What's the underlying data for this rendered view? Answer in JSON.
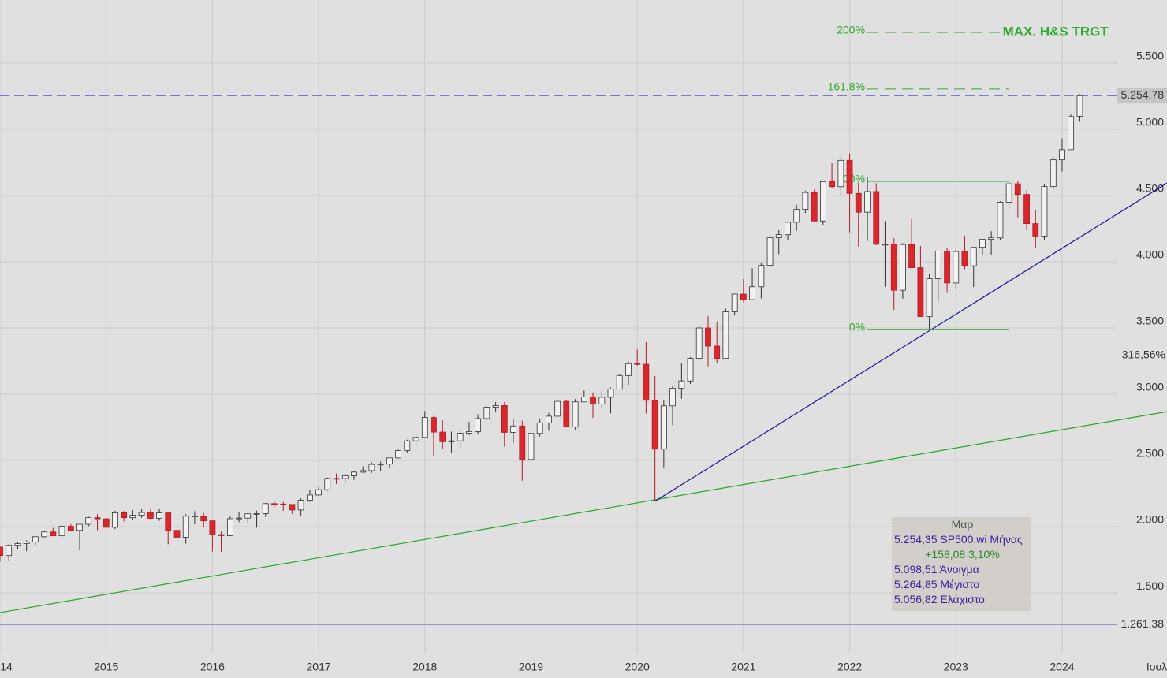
{
  "chart_data": {
    "type": "candlestick",
    "x": [
      2014,
      2014.083,
      2014.167,
      2014.25,
      2014.333,
      2014.417,
      2014.5,
      2014.583,
      2014.667,
      2014.75,
      2014.833,
      2014.917,
      2015,
      2015.083,
      2015.167,
      2015.25,
      2015.333,
      2015.417,
      2015.5,
      2015.583,
      2015.667,
      2015.75,
      2015.833,
      2015.917,
      2016,
      2016.083,
      2016.167,
      2016.25,
      2016.333,
      2016.417,
      2016.5,
      2016.583,
      2016.667,
      2016.75,
      2016.833,
      2016.917,
      2017,
      2017.083,
      2017.167,
      2017.25,
      2017.333,
      2017.417,
      2017.5,
      2017.583,
      2017.667,
      2017.75,
      2017.833,
      2017.917,
      2018,
      2018.083,
      2018.167,
      2018.25,
      2018.333,
      2018.417,
      2018.5,
      2018.583,
      2018.667,
      2018.75,
      2018.833,
      2018.917,
      2019,
      2019.083,
      2019.167,
      2019.25,
      2019.333,
      2019.417,
      2019.5,
      2019.583,
      2019.667,
      2019.75,
      2019.833,
      2019.917,
      2020,
      2020.083,
      2020.167,
      2020.25,
      2020.333,
      2020.417,
      2020.5,
      2020.583,
      2020.667,
      2020.75,
      2020.833,
      2020.917,
      2021,
      2021.083,
      2021.167,
      2021.25,
      2021.333,
      2021.417,
      2021.5,
      2021.583,
      2021.667,
      2021.75,
      2021.833,
      2021.917,
      2022,
      2022.083,
      2022.167,
      2022.25,
      2022.333,
      2022.417,
      2022.5,
      2022.583,
      2022.667,
      2022.75,
      2022.833,
      2022.917,
      2023,
      2023.083,
      2023.167,
      2023.25,
      2023.333,
      2023.417,
      2023.5,
      2023.583,
      2023.667,
      2023.75,
      2023.833,
      2023.917,
      2024,
      2024.083,
      2024.167
    ],
    "open": [
      1846,
      1782,
      1859,
      1872,
      1884,
      1924,
      1960,
      1931,
      2003,
      1972,
      2018,
      2068,
      2059,
      1995,
      2105,
      2068,
      2086,
      2107,
      2063,
      2104,
      1972,
      1920,
      2079,
      2080,
      2044,
      1940,
      1932,
      2060,
      2065,
      2097,
      2099,
      2174,
      2171,
      2168,
      2126,
      2199,
      2239,
      2279,
      2364,
      2363,
      2384,
      2412,
      2423,
      2470,
      2472,
      2519,
      2575,
      2648,
      2674,
      2824,
      2714,
      2641,
      2648,
      2705,
      2718,
      2816,
      2902,
      2914,
      2712,
      2760,
      2507,
      2704,
      2784,
      2834,
      2946,
      2752,
      2942,
      2980,
      2926,
      2977,
      3038,
      3141,
      3231,
      3226,
      2954,
      2585,
      2912,
      3044,
      3100,
      3271,
      3500,
      3363,
      3270,
      3622,
      3756,
      3714,
      3811,
      3973,
      4181,
      4204,
      4298,
      4395,
      4523,
      4308,
      4605,
      4567,
      4766,
      4516,
      4374,
      4530,
      4132,
      4132,
      3785,
      4130,
      3955,
      3586,
      3872,
      4080,
      3840,
      4077,
      3970,
      4109,
      4169,
      4180,
      4450,
      4589,
      4508,
      4288,
      4194,
      4568,
      4770,
      4846,
      5099
    ],
    "high": [
      1850,
      1867,
      1884,
      1897,
      1925,
      1968,
      1991,
      2005,
      2019,
      2019,
      2075,
      2094,
      2072,
      2120,
      2118,
      2126,
      2135,
      2130,
      2133,
      2113,
      2021,
      2094,
      2117,
      2104,
      2044,
      1963,
      2076,
      2112,
      2104,
      2121,
      2178,
      2194,
      2188,
      2170,
      2214,
      2278,
      2301,
      2371,
      2401,
      2399,
      2419,
      2454,
      2484,
      2491,
      2520,
      2582,
      2657,
      2695,
      2873,
      2836,
      2802,
      2718,
      2742,
      2791,
      2848,
      2917,
      2941,
      2940,
      2815,
      2800,
      2708,
      2813,
      2860,
      2949,
      2954,
      2964,
      3028,
      3014,
      3022,
      3050,
      3154,
      3248,
      3338,
      3394,
      3137,
      2954,
      3068,
      3233,
      3280,
      3515,
      3588,
      3550,
      3646,
      3760,
      3870,
      3951,
      3995,
      4219,
      4238,
      4302,
      4430,
      4537,
      4546,
      4608,
      4744,
      4808,
      4819,
      4595,
      4637,
      4593,
      4307,
      4178,
      4140,
      4325,
      4119,
      3906,
      4080,
      4101,
      4095,
      4195,
      4110,
      4170,
      4231,
      4458,
      4607,
      4607,
      4541,
      4393,
      4587,
      4793,
      4932,
      5111,
      5265
    ],
    "low": [
      1738,
      1738,
      1834,
      1815,
      1860,
      1915,
      1930,
      1905,
      1964,
      1821,
      2002,
      1973,
      1988,
      1981,
      2040,
      2048,
      2067,
      2057,
      2044,
      1867,
      1872,
      1872,
      2019,
      1993,
      1812,
      1810,
      1932,
      2034,
      2025,
      1992,
      2074,
      2148,
      2120,
      2097,
      2084,
      2187,
      2234,
      2271,
      2322,
      2329,
      2353,
      2406,
      2407,
      2417,
      2446,
      2515,
      2557,
      2605,
      2670,
      2533,
      2585,
      2553,
      2595,
      2692,
      2698,
      2803,
      2864,
      2604,
      2631,
      2347,
      2444,
      2681,
      2723,
      2830,
      2750,
      2729,
      2940,
      2822,
      2891,
      2856,
      3036,
      3070,
      3215,
      2855,
      2192,
      2448,
      2766,
      2966,
      3077,
      3271,
      3210,
      3234,
      3263,
      3594,
      3694,
      3710,
      3723,
      3956,
      4057,
      4165,
      4234,
      4368,
      4305,
      4279,
      4560,
      4495,
      4222,
      4115,
      4157,
      4125,
      3811,
      3637,
      3721,
      3955,
      3585,
      3492,
      3698,
      3764,
      3794,
      3943,
      3809,
      4049,
      4048,
      4166,
      4385,
      4335,
      4238,
      4104,
      4167,
      4546,
      4682,
      4845,
      5057
    ],
    "close": [
      1782,
      1859,
      1872,
      1884,
      1924,
      1960,
      1931,
      2003,
      1972,
      2018,
      2068,
      2059,
      1995,
      2105,
      2068,
      2086,
      2107,
      2063,
      2104,
      1972,
      1920,
      2079,
      2080,
      2044,
      1940,
      1932,
      2060,
      2065,
      2097,
      2099,
      2174,
      2171,
      2168,
      2126,
      2199,
      2239,
      2279,
      2364,
      2363,
      2384,
      2412,
      2423,
      2470,
      2472,
      2519,
      2575,
      2648,
      2674,
      2824,
      2714,
      2641,
      2648,
      2705,
      2718,
      2816,
      2902,
      2914,
      2712,
      2760,
      2507,
      2704,
      2784,
      2834,
      2946,
      2752,
      2942,
      2980,
      2926,
      2977,
      3038,
      3141,
      3231,
      3226,
      2954,
      2585,
      2912,
      3044,
      3100,
      3271,
      3500,
      3363,
      3270,
      3622,
      3756,
      3714,
      3811,
      3973,
      4181,
      4204,
      4298,
      4395,
      4523,
      4308,
      4605,
      4567,
      4766,
      4516,
      4374,
      4530,
      4132,
      4132,
      3785,
      4130,
      3955,
      3586,
      3872,
      4080,
      3840,
      4077,
      3970,
      4109,
      4169,
      4180,
      4450,
      4589,
      4508,
      4288,
      4194,
      4568,
      4770,
      4846,
      5096,
      5254
    ],
    "up_color": "#f2f2f2",
    "down_color": "#d9272e",
    "xlim": [
      2014,
      2024.52
    ],
    "ylim": [
      1048,
      5976
    ],
    "xticks": [
      {
        "value": 2014,
        "label": "14"
      },
      2015,
      2016,
      2017,
      2018,
      2019,
      2020,
      2021,
      2022,
      2023,
      2024
    ],
    "x_end_label": "Ιουλ",
    "yticks": [
      {
        "value": 1500,
        "label": "1.500"
      },
      {
        "value": 2000,
        "label": "2.000"
      },
      {
        "value": 2500,
        "label": "2.500"
      },
      {
        "value": 3000,
        "label": "3.000"
      },
      {
        "value": 3500,
        "label": "3.500"
      },
      {
        "value": 4000,
        "label": "4.000"
      },
      {
        "value": 4500,
        "label": "4.500"
      },
      {
        "value": 5000,
        "label": "5.000"
      },
      {
        "value": 5500,
        "label": "5.500"
      }
    ],
    "grid": true,
    "levels": [
      {
        "value": 5254.78,
        "label": "5.254,78",
        "color": "#6a6ae0",
        "style": "dashed"
      },
      {
        "value": 1261.38,
        "label": "1.261,38",
        "color": "#6a6ae0",
        "style": "solid"
      }
    ],
    "annotation": "316,56%",
    "trendlines": [
      {
        "color": "#22a822",
        "x": [
          2014,
          2024.99
        ],
        "y": [
          1351,
          2869
        ]
      },
      {
        "color": "#14149a",
        "x": [
          2020.167,
          2024.99
        ],
        "y": [
          2192,
          4595
        ]
      }
    ],
    "fibonacci": {
      "color": "#2eaa2e",
      "x": [
        2022.167,
        2023.5
      ],
      "levels": [
        {
          "label": "0%",
          "value": 3490,
          "style": "solid"
        },
        {
          "label": "100%",
          "value": 4607,
          "style": "solid"
        },
        {
          "label": "161.8%",
          "value": 5304,
          "style": "dashed"
        },
        {
          "label": "200%",
          "value": 5732,
          "style": "dashed"
        }
      ],
      "target_label": "MAX. H&S TRGT"
    },
    "info": {
      "title": "Μαρ",
      "rows": [
        "5.254,35 SP500.wi Μήνας",
        "+158,08 3,10%",
        "5.098,51 Άνοιγμα",
        "5.264,85 Μέγιστο",
        "5.056,82 Ελάχιστο"
      ]
    }
  }
}
